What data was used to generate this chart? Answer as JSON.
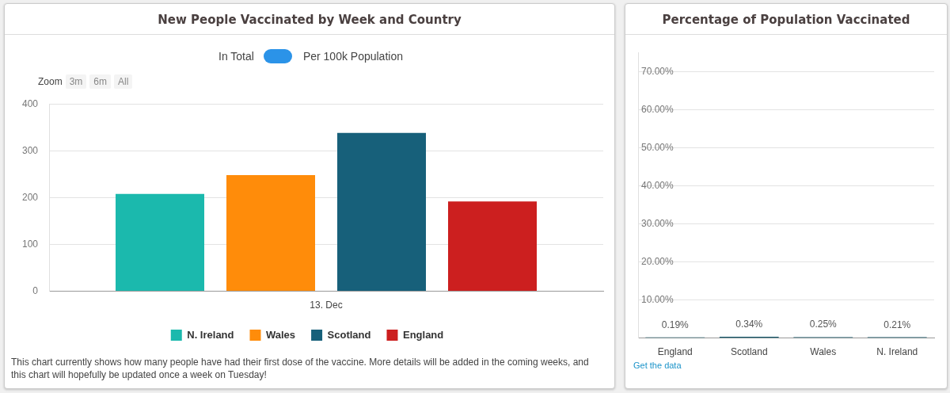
{
  "chart_data": [
    {
      "type": "bar",
      "title": "New People Vaccinated by Week and Country",
      "categories": [
        "13. Dec"
      ],
      "series": [
        {
          "name": "N. Ireland",
          "color": "#1bb9ad",
          "values": [
            208
          ]
        },
        {
          "name": "Wales",
          "color": "#ff8c0a",
          "values": [
            248
          ]
        },
        {
          "name": "Scotland",
          "color": "#17607a",
          "values": [
            338
          ]
        },
        {
          "name": "England",
          "color": "#cc1f1f",
          "values": [
            192
          ]
        }
      ],
      "ylim": [
        0,
        400
      ],
      "yticks": [
        0,
        100,
        200,
        300,
        400
      ],
      "grid": "y",
      "legend": "bottom",
      "annotations": [
        "In Total",
        "Per 100k Population",
        "Zoom",
        "3m",
        "6m",
        "All",
        "This chart currently shows how many people have had their first dose of the vaccine. More details will be added in the coming weeks, and this chart will hopefully be updated once a week on Tuesday!"
      ]
    },
    {
      "type": "bar",
      "title": "Percentage of Population Vaccinated",
      "categories": [
        "England",
        "Scotland",
        "Wales",
        "N. Ireland"
      ],
      "values": [
        0.19,
        0.34,
        0.25,
        0.21
      ],
      "color": "#1a5c6e",
      "value_labels": [
        "0.19%",
        "0.34%",
        "0.25%",
        "0.21%"
      ],
      "ylim": [
        0,
        75
      ],
      "yticks": [
        {
          "value": 10,
          "label": "10.00%"
        },
        {
          "value": 20,
          "label": "20.00%"
        },
        {
          "value": 30,
          "label": "30.00%"
        },
        {
          "value": 40,
          "label": "40.00%"
        },
        {
          "value": 50,
          "label": "50.00%"
        },
        {
          "value": 60,
          "label": "60.00%"
        },
        {
          "value": 70,
          "label": "70.00%"
        }
      ],
      "grid": "y",
      "annotations": [
        "Get the data"
      ]
    }
  ]
}
